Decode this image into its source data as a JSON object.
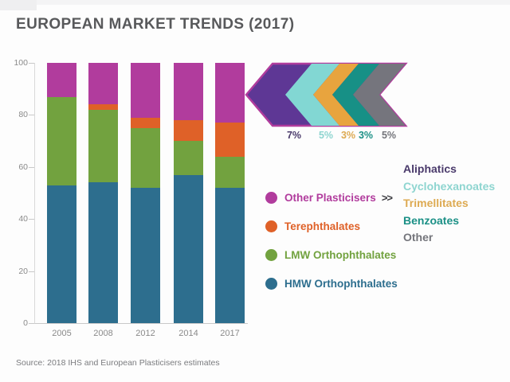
{
  "title": "EUROPEAN MARKET TRENDS (2017)",
  "source_note": "Source: 2018 IHS and European Plasticisers estimates",
  "colors": {
    "title_text": "#58595b",
    "axis_line": "#c9c9c9",
    "tick_label": "#8a8a8a",
    "arrow_outline": "#b13c9d",
    "pointer_glyph": "#3b3b40"
  },
  "chart_data": {
    "type": "bar",
    "stacked": true,
    "title": "EUROPEAN MARKET TRENDS (2017)",
    "categories": [
      "2005",
      "2008",
      "2012",
      "2014",
      "2017"
    ],
    "series": [
      {
        "name": "HMW Orthophthalates",
        "color": "#2d6e8e",
        "values": [
          53,
          54,
          52,
          57,
          52
        ]
      },
      {
        "name": "LMW Orthophthalates",
        "color": "#72a23f",
        "values": [
          34,
          28,
          23,
          13,
          12
        ]
      },
      {
        "name": "Terephthalates",
        "color": "#df6128",
        "values": [
          0,
          2,
          4,
          8,
          13
        ]
      },
      {
        "name": "Other Plasticisers",
        "color": "#b13c9d",
        "values": [
          13,
          16,
          21,
          22,
          23
        ]
      }
    ],
    "xlabel": "",
    "ylabel": "",
    "ylim": [
      0,
      100
    ],
    "yticks": [
      0,
      20,
      40,
      60,
      80,
      100
    ],
    "grid": false,
    "legend_position": "right",
    "annotation": "2017 'Other Plasticisers' share (23%) breaks down into Aliphatics 7%, Cyclohexanoates 5%, Trimellitates 3%, Benzoates 3%, Other 5%"
  },
  "legend": {
    "pointer": ">>",
    "items": [
      {
        "label": "Other Plasticisers",
        "color": "#b13c9d",
        "has_pointer": true
      },
      {
        "label": "Terephthalates",
        "color": "#df6128",
        "has_pointer": false
      },
      {
        "label": "LMW Orthophthalates",
        "color": "#72a23f",
        "has_pointer": false
      },
      {
        "label": "HMW Orthophthalates",
        "color": "#2d6e8e",
        "has_pointer": false
      }
    ]
  },
  "breakdown": {
    "items": [
      {
        "label": "Aliphatics",
        "percent": "7%",
        "text_color": "#4a3a6b",
        "band_color": "#5e3795"
      },
      {
        "label": "Cyclohexanoates",
        "percent": "5%",
        "text_color": "#8ed5d0",
        "band_color": "#82d7d3"
      },
      {
        "label": "Trimellitates",
        "percent": "3%",
        "text_color": "#ddaa52",
        "band_color": "#e8a43e"
      },
      {
        "label": "Benzoates",
        "percent": "3%",
        "text_color": "#1b9086",
        "band_color": "#179086"
      },
      {
        "label": "Other",
        "percent": "5%",
        "text_color": "#74757b",
        "band_color": "#75757d"
      }
    ]
  }
}
